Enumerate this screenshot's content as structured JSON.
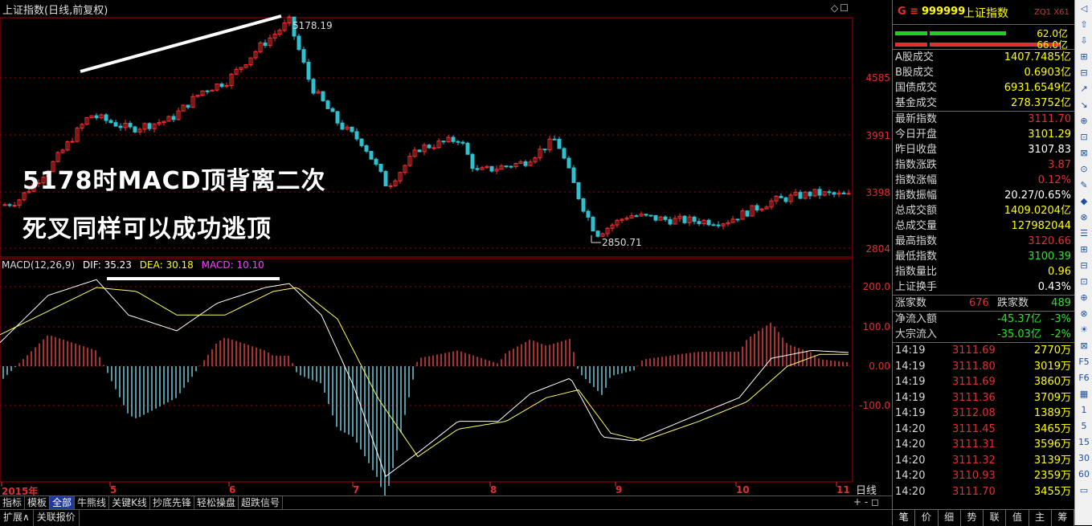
{
  "chart": {
    "title": "上证指数(日线,前复权)",
    "corner_buttons": "◇☐",
    "overlay_line1": "5178时MACD顶背离二次",
    "overlay_line2": "死叉同样可以成功逃顶",
    "high_label": "5178.19",
    "low_label": "2850.71",
    "price_axis": [
      "4585",
      "3991",
      "3398",
      "2804"
    ],
    "macd_axis": [
      "200.0",
      "100.0",
      "0.00",
      "-100.0"
    ],
    "x_labels": [
      {
        "text": "2015年"
      },
      {
        "text": "5"
      },
      {
        "text": "6"
      },
      {
        "text": "7"
      },
      {
        "text": "8"
      },
      {
        "text": "9"
      },
      {
        "text": "10"
      },
      {
        "text": "11"
      }
    ],
    "period_label": "日线",
    "macd": {
      "name": "MACD(12,26,9)",
      "dif": "DIF: 35.23",
      "dea": "DEA: 30.18",
      "macd": "MACD: 10.10"
    },
    "colors": {
      "up": "#ff3030",
      "down": "#30c0d0",
      "dif": "#ffffff",
      "dea": "#ffff60"
    }
  },
  "bottom_tabs": [
    "指标",
    "模板",
    "全部",
    "牛熊线",
    "关键K线",
    "抄底先锋",
    "轻松操盘",
    "超跌信号"
  ],
  "bottom_active": "全部",
  "bottom_controls": "+  -  ◻",
  "status_tabs": [
    "扩展∧",
    "关联报价"
  ],
  "panel": {
    "g": "G ≡",
    "code": "999999",
    "name": "上证指数",
    "tag": "ZQ1 X61",
    "bar1_label": "62.0亿",
    "bar2_label": "66.0亿",
    "volumes": [
      {
        "label": "A股成交",
        "value": "1407.7485亿"
      },
      {
        "label": "B股成交",
        "value": "0.6903亿"
      },
      {
        "label": "国债成交",
        "value": "6931.6549亿"
      },
      {
        "label": "基金成交",
        "value": "278.3752亿"
      }
    ],
    "quote": [
      {
        "label": "最新指数",
        "value": "3111.70",
        "color": "#e03030"
      },
      {
        "label": "今日开盘",
        "value": "3101.29",
        "color": "#ffff00"
      },
      {
        "label": "昨日收盘",
        "value": "3107.83",
        "color": "#ffffff"
      },
      {
        "label": "指数涨跌",
        "value": "3.87",
        "color": "#e03030"
      },
      {
        "label": "指数涨幅",
        "value": "0.12%",
        "color": "#e03030"
      },
      {
        "label": "指数振幅",
        "value": "20.27/0.65%",
        "color": "#ffffff"
      },
      {
        "label": "总成交额",
        "value": "1409.0204亿",
        "color": "#ffff00"
      },
      {
        "label": "总成交量",
        "value": "127982044",
        "color": "#ffff00"
      },
      {
        "label": "最高指数",
        "value": "3120.66",
        "color": "#e03030"
      },
      {
        "label": "最低指数",
        "value": "3100.39",
        "color": "#30e030"
      },
      {
        "label": "指数量比",
        "value": "0.96",
        "color": "#ffff00"
      },
      {
        "label": "上证换手",
        "value": "0.43%",
        "color": "#ffffff"
      }
    ],
    "rise_label": "涨家数",
    "rise_value": "676",
    "fall_label": "跌家数",
    "fall_value": "489",
    "flows": [
      {
        "label": "净流入额",
        "value": "-45.37亿",
        "pct": "-3%"
      },
      {
        "label": "大宗流入",
        "value": "-35.03亿",
        "pct": "-2%"
      }
    ],
    "ticks": [
      {
        "t": "14:19",
        "p": "3111.69",
        "v": "2770万"
      },
      {
        "t": "14:19",
        "p": "3111.80",
        "v": "3019万"
      },
      {
        "t": "14:19",
        "p": "3111.69",
        "v": "3860万"
      },
      {
        "t": "14:19",
        "p": "3111.36",
        "v": "3709万"
      },
      {
        "t": "14:19",
        "p": "3112.08",
        "v": "1389万"
      },
      {
        "t": "14:20",
        "p": "3111.45",
        "v": "3465万"
      },
      {
        "t": "14:20",
        "p": "3111.31",
        "v": "3596万"
      },
      {
        "t": "14:20",
        "p": "3111.32",
        "v": "3139万"
      },
      {
        "t": "14:20",
        "p": "3110.93",
        "v": "2359万"
      },
      {
        "t": "14:20",
        "p": "3111.70",
        "v": "3455万"
      }
    ],
    "foot_tabs": [
      "笔",
      "价",
      "细",
      "势",
      "联",
      "值",
      "主",
      "筹"
    ]
  },
  "toolbar": [
    "◁",
    "⇧",
    "⇩",
    "⊞",
    "⊟",
    "↗",
    "↘",
    "⊕",
    "⊡",
    "⊠",
    "⊙",
    "✎",
    "◆",
    "⊗",
    "☰",
    "⊞",
    "⊟",
    "⊡",
    "⊕",
    "⊗",
    "☀",
    "⊠",
    "F5",
    "F6",
    "▦",
    "1",
    "5",
    "15",
    "30",
    "60",
    "▭"
  ]
}
